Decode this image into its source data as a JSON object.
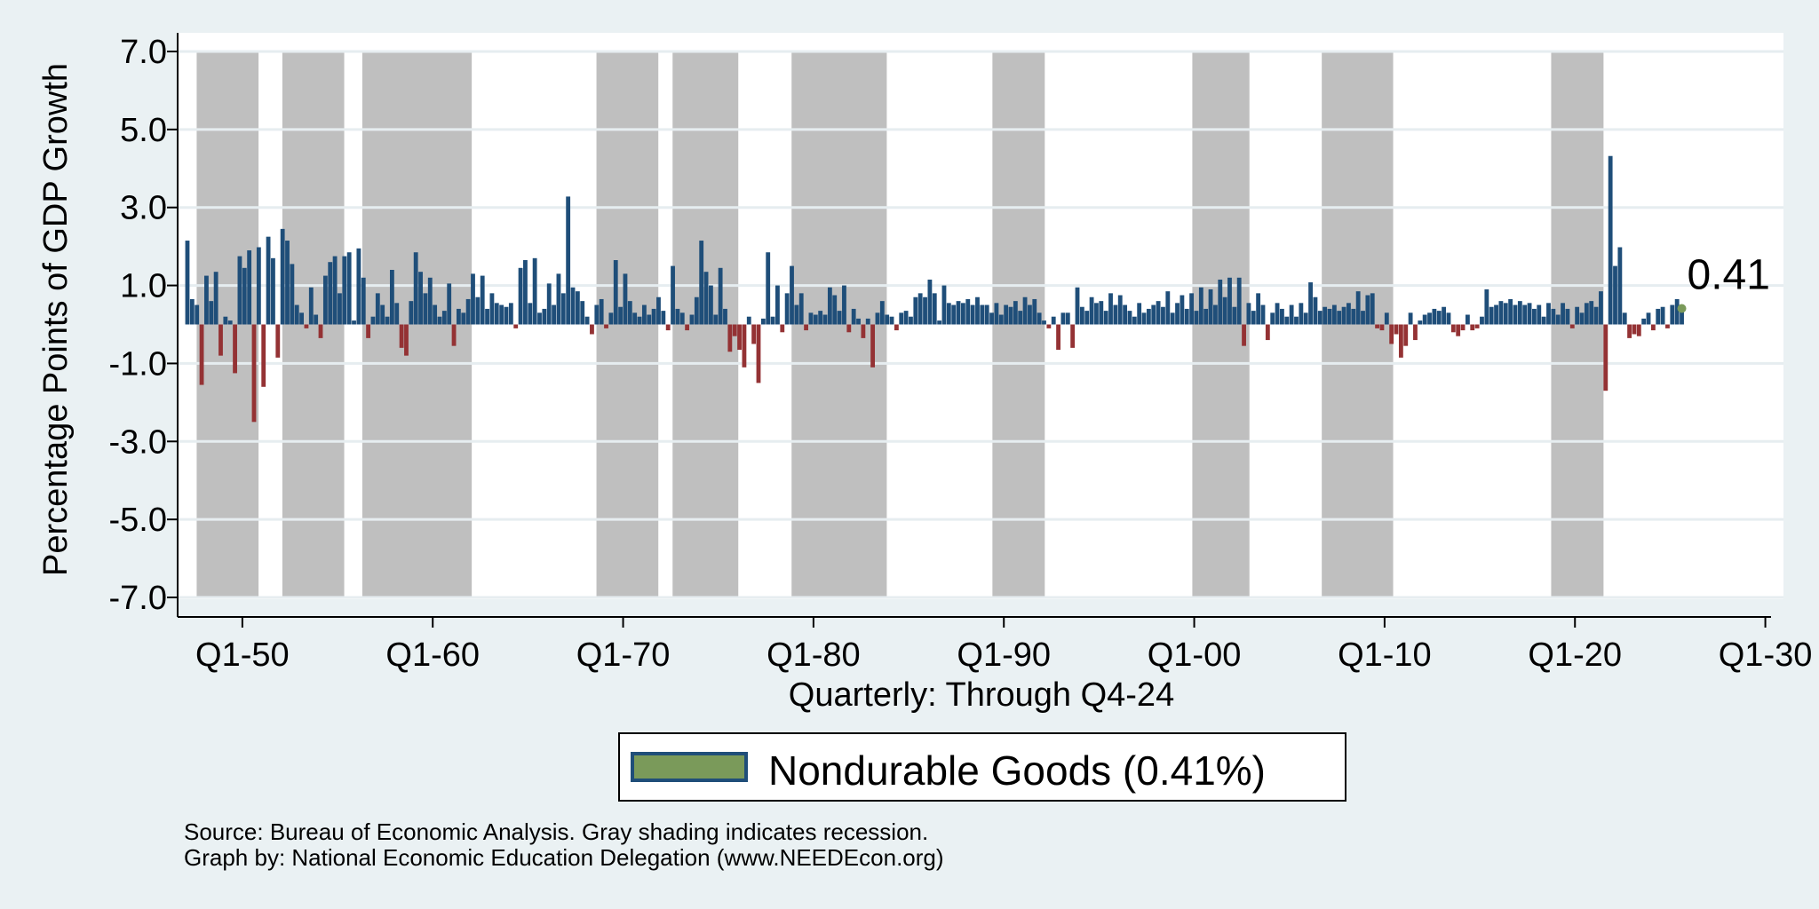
{
  "chart_data": {
    "type": "bar",
    "ylabel": "Percentage Points of GDP Growth",
    "xlabel": "Quarterly: Through Q4-24",
    "ylim": [
      -7,
      7
    ],
    "yticks": [
      7,
      5,
      3,
      1,
      -1,
      -3,
      -5,
      -7
    ],
    "ytick_labels": [
      "7.0",
      "5.0",
      "3.0",
      "1.0",
      "-1.0",
      "-3.0",
      "-5.0",
      "-7.0"
    ],
    "x_range_years": [
      1946.6,
      2030.3
    ],
    "xticks": [
      1950,
      1960,
      1970,
      1980,
      1990,
      2000,
      2010,
      2020,
      2030
    ],
    "xtick_labels": [
      "Q1-50",
      "Q1-60",
      "Q1-70",
      "Q1-80",
      "Q1-90",
      "Q1-00",
      "Q1-10",
      "Q1-20",
      "Q1-30"
    ],
    "first_quarter": "Q1-1947",
    "last_quarter": "Q4-2024",
    "series": [
      {
        "name": "Nondurable Goods",
        "positive_color": "#1f4e79",
        "negative_color": "#943234",
        "values": [
          2.15,
          0.65,
          0.5,
          -1.55,
          1.25,
          0.6,
          1.35,
          -0.8,
          0.2,
          0.1,
          -1.25,
          1.75,
          1.45,
          1.9,
          -2.5,
          1.98,
          -1.6,
          2.25,
          1.7,
          -0.85,
          2.45,
          2.15,
          1.55,
          0.5,
          0.3,
          -0.1,
          0.95,
          0.25,
          -0.35,
          1.25,
          1.6,
          1.75,
          0.8,
          1.75,
          1.85,
          0.1,
          1.95,
          1.2,
          -0.35,
          0.2,
          0.8,
          0.5,
          0.2,
          1.4,
          0.55,
          -0.6,
          -0.8,
          0.6,
          1.85,
          1.35,
          0.8,
          1.2,
          0.5,
          0.2,
          0.35,
          1.05,
          -0.55,
          0.4,
          0.3,
          0.65,
          1.3,
          0.7,
          1.25,
          0.4,
          0.8,
          0.55,
          0.5,
          0.45,
          0.55,
          -0.1,
          1.45,
          1.65,
          0.55,
          1.7,
          0.3,
          0.4,
          1.05,
          0.5,
          1.3,
          0.8,
          3.28,
          0.95,
          0.85,
          0.6,
          0.2,
          -0.25,
          0.5,
          0.65,
          -0.1,
          0.3,
          1.65,
          0.45,
          1.3,
          0.6,
          0.3,
          0.2,
          0.5,
          0.25,
          0.4,
          0.7,
          0.35,
          -0.15,
          1.5,
          0.4,
          0.3,
          -0.15,
          0.25,
          0.7,
          2.15,
          1.35,
          1.0,
          0.25,
          1.45,
          0.4,
          -0.7,
          -0.3,
          -0.65,
          -1.1,
          0.2,
          -0.5,
          -1.5,
          0.15,
          1.85,
          0.2,
          1.0,
          -0.2,
          0.8,
          1.5,
          0.5,
          0.8,
          -0.15,
          0.3,
          0.25,
          0.35,
          0.25,
          0.95,
          0.75,
          0.35,
          1.0,
          -0.2,
          0.4,
          0.15,
          -0.35,
          0.15,
          -1.1,
          0.3,
          0.6,
          0.25,
          0.2,
          -0.15,
          0.3,
          0.35,
          0.2,
          0.7,
          0.8,
          0.7,
          1.15,
          0.8,
          0.1,
          1.0,
          0.55,
          0.5,
          0.6,
          0.55,
          0.65,
          0.5,
          0.7,
          0.5,
          0.5,
          0.3,
          0.55,
          0.25,
          0.5,
          0.45,
          0.6,
          0.35,
          0.7,
          0.5,
          0.65,
          0.3,
          0.1,
          -0.1,
          0.2,
          -0.65,
          0.3,
          0.3,
          -0.6,
          0.95,
          0.45,
          0.35,
          0.7,
          0.55,
          0.6,
          0.35,
          0.8,
          0.5,
          0.75,
          0.5,
          0.35,
          0.2,
          0.55,
          0.3,
          0.4,
          0.5,
          0.6,
          0.45,
          0.85,
          0.3,
          0.55,
          0.75,
          0.4,
          0.8,
          0.35,
          0.95,
          0.4,
          0.9,
          0.5,
          1.15,
          0.7,
          1.2,
          0.45,
          1.2,
          -0.55,
          0.55,
          0.35,
          0.8,
          0.5,
          -0.4,
          0.3,
          0.55,
          0.4,
          0.2,
          0.5,
          0.2,
          0.55,
          0.3,
          1.08,
          0.7,
          0.35,
          0.45,
          0.4,
          0.5,
          0.35,
          0.45,
          0.55,
          0.4,
          0.85,
          0.35,
          0.75,
          0.8,
          -0.1,
          -0.15,
          0.3,
          -0.5,
          -0.25,
          -0.85,
          -0.55,
          0.3,
          -0.4,
          0.1,
          0.25,
          0.3,
          0.4,
          0.35,
          0.45,
          0.3,
          -0.2,
          -0.3,
          -0.15,
          0.25,
          -0.15,
          -0.1,
          0.2,
          0.9,
          0.45,
          0.5,
          0.6,
          0.55,
          0.65,
          0.5,
          0.6,
          0.5,
          0.55,
          0.4,
          0.5,
          0.2,
          0.55,
          0.4,
          0.25,
          0.55,
          0.4,
          -0.1,
          0.45,
          0.3,
          0.55,
          0.6,
          0.45,
          0.85,
          -1.7,
          4.32,
          1.5,
          1.98,
          0.3,
          -0.35,
          -0.25,
          -0.3,
          0.15,
          0.3,
          -0.15,
          0.4,
          0.45,
          -0.1,
          0.5,
          0.65,
          0.41
        ]
      }
    ],
    "recessions": [
      [
        "Q4-1948",
        "Q4-1949"
      ],
      [
        "Q2-1953",
        "Q2-1954"
      ],
      [
        "Q3-1957",
        "Q2-1958"
      ],
      [
        "Q2-1960",
        "Q1-1961"
      ],
      [
        "Q4-1969",
        "Q4-1970"
      ],
      [
        "Q4-1973",
        "Q1-1975"
      ],
      [
        "Q1-1980",
        "Q3-1980"
      ],
      [
        "Q3-1981",
        "Q4-1982"
      ],
      [
        "Q3-1990",
        "Q1-1991"
      ],
      [
        "Q1-2001",
        "Q4-2001"
      ],
      [
        "Q4-2007",
        "Q2-2009"
      ],
      [
        "Q4-2019",
        "Q2-2020"
      ]
    ],
    "recession_spans_years": [
      [
        1947.6,
        1950.85
      ],
      [
        1952.1,
        1955.35
      ],
      [
        1956.3,
        1962.05
      ],
      [
        1968.6,
        1971.85
      ],
      [
        1972.6,
        1976.05
      ],
      [
        1978.85,
        1983.85
      ],
      [
        1989.4,
        1992.15
      ],
      [
        1999.9,
        2002.9
      ],
      [
        2006.7,
        2010.45
      ],
      [
        2018.75,
        2021.5
      ]
    ],
    "end_label": "0.41",
    "legend": [
      {
        "label": "Nondurable Goods (0.41%)",
        "swatch_fill": "#7a9a5a",
        "swatch_border": "#1f4e79"
      }
    ],
    "legend_position": "bottom-center",
    "grid": true,
    "recession_color": "#bfbfbf"
  },
  "footer": {
    "source": "Source: Bureau of Economic Analysis. Gray shading indicates recession.",
    "credit": "Graph by: National Economic Education Delegation (www.NEEDEcon.org)"
  }
}
